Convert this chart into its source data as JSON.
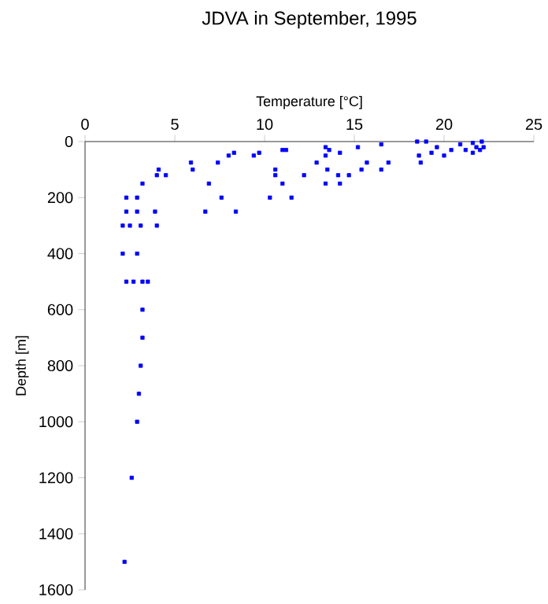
{
  "chart_data": {
    "type": "scatter",
    "title": "JDVA in September, 1995",
    "xlabel": "Temperature [°C]",
    "ylabel": "Depth [m]",
    "xlim": [
      0,
      25
    ],
    "xticks": [
      0,
      5,
      10,
      15,
      20,
      25
    ],
    "ylim": [
      1600,
      0
    ],
    "yticks": [
      0,
      200,
      400,
      600,
      800,
      1000,
      1200,
      1400,
      1600
    ],
    "marker": "square",
    "series": [
      {
        "color": "#0000ff",
        "x": [
          2.3,
          2.9,
          4.1,
          4.0,
          4.5,
          3.2,
          5.9,
          6.0,
          7.4,
          8.0,
          8.3,
          9.4,
          9.7,
          6.9,
          7.6,
          8.4,
          6.7,
          2.3,
          2.9,
          3.9,
          2.1,
          2.5,
          3.1,
          4.0,
          2.1,
          2.9,
          2.3,
          2.7,
          3.2,
          3.5,
          3.2,
          3.2,
          3.1,
          3.0,
          2.9,
          2.6,
          2.2,
          10.3,
          10.6,
          10.6,
          11.0,
          11.2,
          13.4,
          13.6,
          14.2,
          13.4,
          12.9,
          13.5,
          12.2,
          14.1,
          14.7,
          15.4,
          15.2,
          15.7,
          16.5,
          16.9,
          16.5,
          11.0,
          13.4,
          14.2,
          11.5,
          18.5,
          19.0,
          18.6,
          18.7,
          19.3,
          19.6,
          20.0,
          20.4,
          20.9,
          21.2,
          21.6,
          21.6,
          21.8,
          22.1,
          22.2,
          22.0
        ],
        "values": [
          200,
          200,
          100,
          120,
          120,
          150,
          75,
          100,
          75,
          50,
          40,
          50,
          40,
          150,
          200,
          250,
          250,
          250,
          250,
          250,
          300,
          300,
          300,
          300,
          400,
          400,
          500,
          500,
          500,
          500,
          600,
          700,
          800,
          900,
          1000,
          1200,
          1500,
          200,
          100,
          120,
          30,
          30,
          20,
          30,
          40,
          50,
          75,
          100,
          120,
          120,
          120,
          100,
          20,
          75,
          10,
          75,
          100,
          150,
          150,
          150,
          200,
          0,
          0,
          50,
          75,
          40,
          20,
          50,
          30,
          10,
          30,
          5,
          40,
          20,
          0,
          20,
          30
        ]
      }
    ]
  }
}
